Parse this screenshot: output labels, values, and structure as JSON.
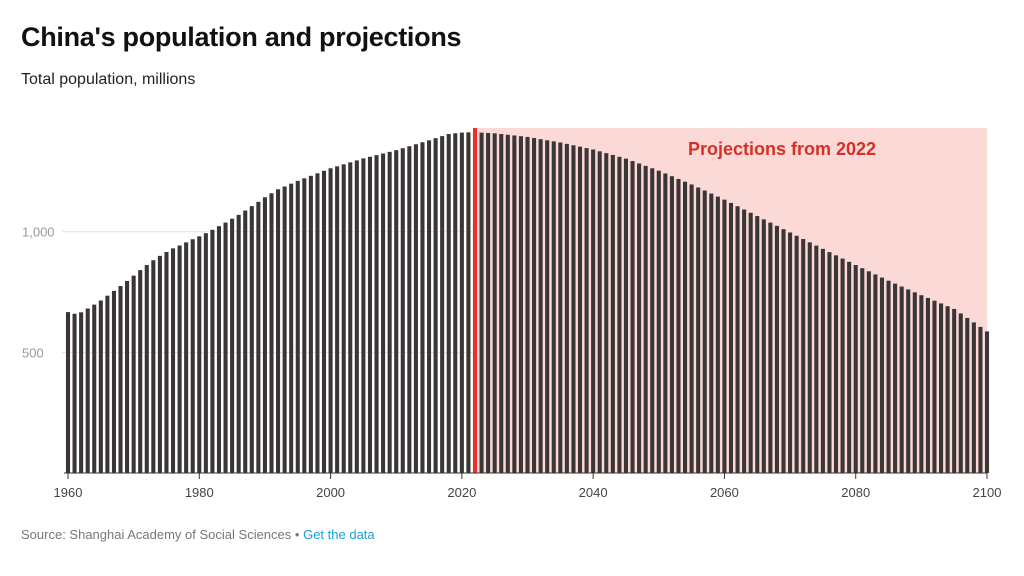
{
  "header": {
    "title": "China's population and projections",
    "subtitle": "Total population, millions"
  },
  "annotation": {
    "label": "Projections from 2022"
  },
  "footer": {
    "source": "Source: Shanghai Academy of Social Sciences",
    "separator": "•",
    "link_label": "Get the data"
  },
  "colors": {
    "bar": "#3a3536",
    "projection_fill": "#fbd9d6",
    "marker_line": "#e8302e",
    "annotation_text": "#d63027",
    "link": "#1a9fd6"
  },
  "chart_data": {
    "type": "bar",
    "title": "China's population and projections",
    "subtitle": "Total population, millions",
    "xlabel": "",
    "ylabel": "",
    "x_range": [
      1960,
      2100
    ],
    "x_ticks": [
      1960,
      1980,
      2000,
      2020,
      2040,
      2060,
      2080,
      2100
    ],
    "ylim": [
      0,
      1430
    ],
    "y_ticks": [
      500,
      1000
    ],
    "y_tick_labels": [
      "500",
      "1,000"
    ],
    "grid": "horizontal",
    "projection_start": 2022,
    "projection_label": "Projections from 2022",
    "anchor_points": [
      [
        1960,
        667
      ],
      [
        1961,
        660
      ],
      [
        1962,
        666
      ],
      [
        1963,
        682
      ],
      [
        1964,
        698
      ],
      [
        1965,
        715
      ],
      [
        1966,
        735
      ],
      [
        1967,
        755
      ],
      [
        1968,
        775
      ],
      [
        1969,
        796
      ],
      [
        1970,
        818
      ],
      [
        1971,
        841
      ],
      [
        1972,
        862
      ],
      [
        1973,
        882
      ],
      [
        1974,
        900
      ],
      [
        1975,
        916
      ],
      [
        1976,
        931
      ],
      [
        1977,
        943
      ],
      [
        1978,
        956
      ],
      [
        1979,
        969
      ],
      [
        1980,
        981
      ],
      [
        1981,
        994
      ],
      [
        1982,
        1008
      ],
      [
        1983,
        1023
      ],
      [
        1984,
        1038
      ],
      [
        1985,
        1054
      ],
      [
        1986,
        1070
      ],
      [
        1987,
        1088
      ],
      [
        1988,
        1106
      ],
      [
        1989,
        1124
      ],
      [
        1990,
        1143
      ],
      [
        1992,
        1176
      ],
      [
        1995,
        1211
      ],
      [
        2000,
        1263
      ],
      [
        2005,
        1304
      ],
      [
        2010,
        1338
      ],
      [
        2015,
        1379
      ],
      [
        2018,
        1405
      ],
      [
        2020,
        1411
      ],
      [
        2021,
        1412
      ],
      [
        2022,
        1412
      ],
      [
        2025,
        1408
      ],
      [
        2030,
        1393
      ],
      [
        2035,
        1370
      ],
      [
        2040,
        1341
      ],
      [
        2045,
        1303
      ],
      [
        2050,
        1253
      ],
      [
        2055,
        1196
      ],
      [
        2060,
        1133
      ],
      [
        2065,
        1065
      ],
      [
        2070,
        997
      ],
      [
        2075,
        929
      ],
      [
        2080,
        862
      ],
      [
        2085,
        797
      ],
      [
        2090,
        737
      ],
      [
        2095,
        680
      ],
      [
        2100,
        587
      ]
    ]
  }
}
